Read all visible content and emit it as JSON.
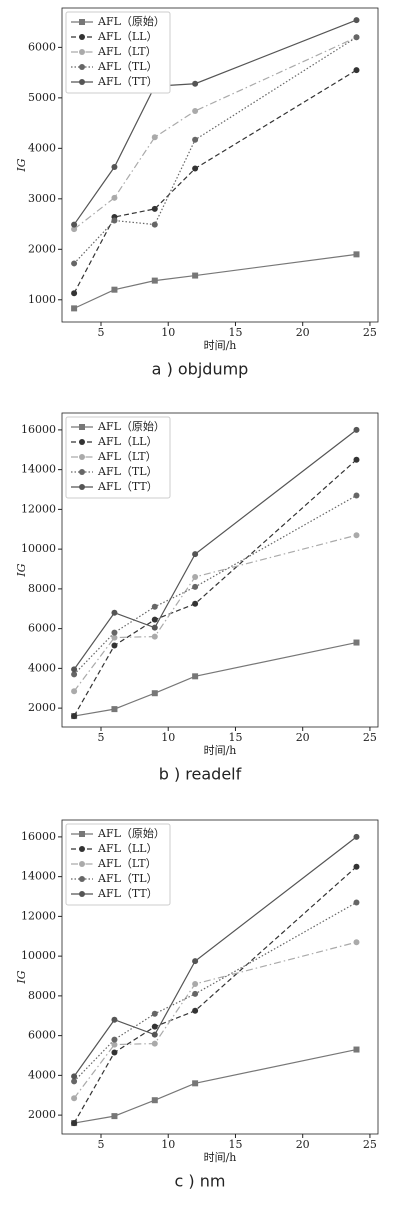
{
  "chart_data": [
    {
      "type": "line",
      "caption": "a ) objdump",
      "xlabel": "时间/h",
      "ylabel": "IG",
      "x": [
        3,
        6,
        9,
        12,
        24
      ],
      "xlim": [
        2.1,
        25.6
      ],
      "xticks": [
        5,
        10,
        15,
        20,
        25
      ],
      "ylim": [
        560,
        6780
      ],
      "yticks": [
        1000,
        2000,
        3000,
        4000,
        5000,
        6000
      ],
      "legend": "upper left",
      "series": [
        {
          "name": "AFL（原始）",
          "color": "#777777",
          "linestyle": "solid",
          "marker": "square",
          "values": [
            830,
            1200,
            1380,
            1480,
            1900
          ]
        },
        {
          "name": "AFL（LL）",
          "color": "#333333",
          "linestyle": "dashed",
          "marker": "circle",
          "values": [
            1130,
            2640,
            2800,
            3600,
            5550
          ]
        },
        {
          "name": "AFL（LT）",
          "color": "#aaaaaa",
          "linestyle": "dashdot",
          "marker": "circle",
          "values": [
            2400,
            3020,
            4220,
            4740,
            6200
          ]
        },
        {
          "name": "AFL（TL）",
          "color": "#666666",
          "linestyle": "dotted",
          "marker": "circle",
          "values": [
            1720,
            2570,
            2490,
            4170,
            6200
          ]
        },
        {
          "name": "AFL（TT）",
          "color": "#555555",
          "linestyle": "solid",
          "marker": "circle",
          "values": [
            2490,
            3630,
            5230,
            5280,
            6540
          ]
        }
      ]
    },
    {
      "type": "line",
      "caption": "b ) readelf",
      "xlabel": "时间/h",
      "ylabel": "IG",
      "x": [
        3,
        6,
        9,
        12,
        24
      ],
      "xlim": [
        2.1,
        25.6
      ],
      "xticks": [
        5,
        10,
        15,
        20,
        25
      ],
      "ylim": [
        1050,
        16850
      ],
      "yticks": [
        2000,
        4000,
        6000,
        8000,
        10000,
        12000,
        14000,
        16000
      ],
      "legend": "upper left",
      "series": [
        {
          "name": "AFL（原始）",
          "color": "#777777",
          "linestyle": "solid",
          "marker": "square",
          "values": [
            1600,
            1950,
            2750,
            3600,
            5300
          ]
        },
        {
          "name": "AFL（LL）",
          "color": "#333333",
          "linestyle": "dashed",
          "marker": "circle",
          "values": [
            1600,
            5150,
            6450,
            7250,
            14500
          ]
        },
        {
          "name": "AFL（LT）",
          "color": "#aaaaaa",
          "linestyle": "dashdot",
          "marker": "circle",
          "values": [
            2850,
            5550,
            5600,
            8600,
            10700
          ]
        },
        {
          "name": "AFL（TL）",
          "color": "#666666",
          "linestyle": "dotted",
          "marker": "circle",
          "values": [
            3700,
            5800,
            7100,
            8100,
            12700
          ]
        },
        {
          "name": "AFL（TT）",
          "color": "#555555",
          "linestyle": "solid",
          "marker": "circle",
          "values": [
            3950,
            6800,
            6050,
            9750,
            16000
          ]
        }
      ]
    },
    {
      "type": "line",
      "caption": "c ) nm",
      "xlabel": "时间/h",
      "ylabel": "IG",
      "x": [
        3,
        6,
        9,
        12,
        24
      ],
      "xlim": [
        2.1,
        25.6
      ],
      "xticks": [
        5,
        10,
        15,
        20,
        25
      ],
      "ylim": [
        1050,
        16850
      ],
      "yticks": [
        2000,
        4000,
        6000,
        8000,
        10000,
        12000,
        14000,
        16000
      ],
      "legend": "upper left",
      "series": [
        {
          "name": "AFL（原始）",
          "color": "#777777",
          "linestyle": "solid",
          "marker": "square",
          "values": [
            1600,
            1950,
            2750,
            3600,
            5300
          ]
        },
        {
          "name": "AFL（LL）",
          "color": "#333333",
          "linestyle": "dashed",
          "marker": "circle",
          "values": [
            1600,
            5150,
            6450,
            7250,
            14500
          ]
        },
        {
          "name": "AFL（LT）",
          "color": "#aaaaaa",
          "linestyle": "dashdot",
          "marker": "circle",
          "values": [
            2850,
            5550,
            5600,
            8600,
            10700
          ]
        },
        {
          "name": "AFL（TL）",
          "color": "#666666",
          "linestyle": "dotted",
          "marker": "circle",
          "values": [
            3700,
            5800,
            7100,
            8100,
            12700
          ]
        },
        {
          "name": "AFL（TT）",
          "color": "#555555",
          "linestyle": "solid",
          "marker": "circle",
          "values": [
            3950,
            6800,
            6050,
            9750,
            16000
          ]
        }
      ]
    }
  ]
}
